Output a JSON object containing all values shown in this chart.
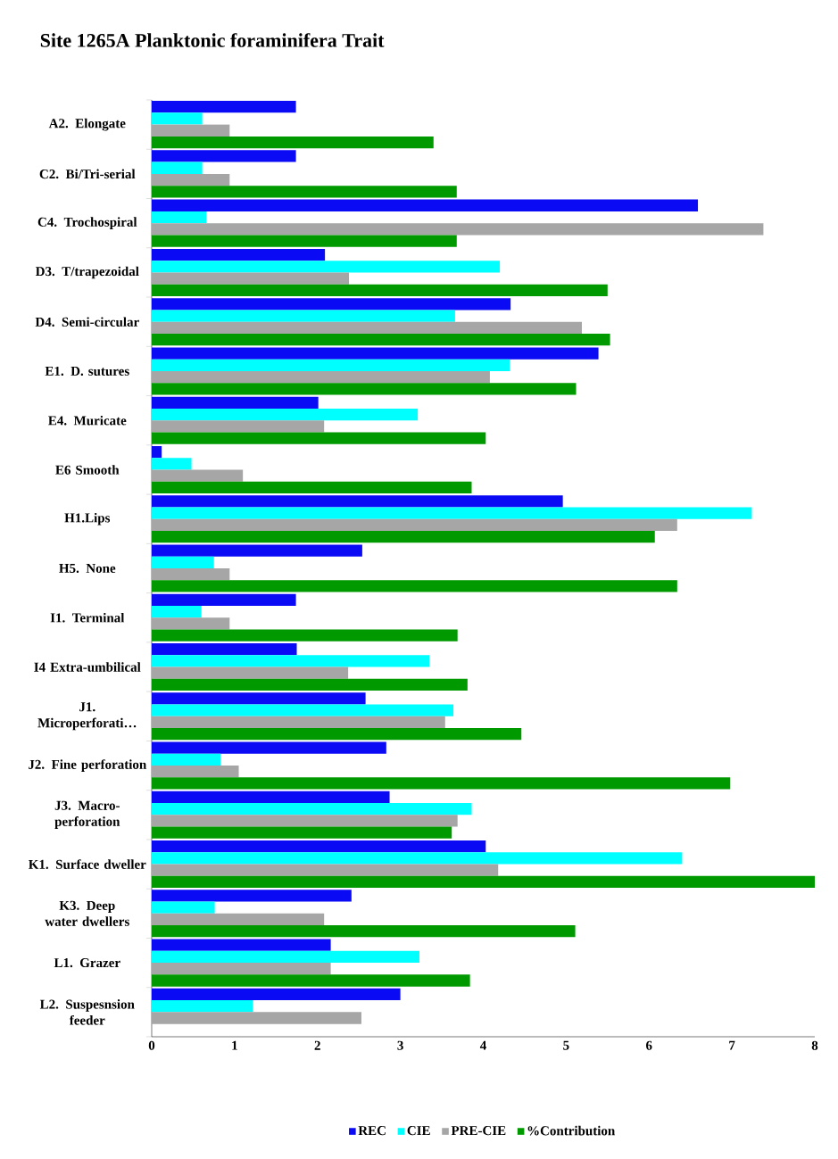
{
  "chart_data": {
    "type": "bar",
    "orientation": "horizontal",
    "title": "Site 1265A Planktonic foraminifera Trait",
    "categories": [
      "A2. Elongate",
      "C2. Bi/Tri-serial",
      "C4. Trochospiral",
      "D3. T/trapezoidal",
      "D4. Semi-circular",
      "E1. D. sutures",
      "E4. Muricate",
      "E6 Smooth",
      "H1.Lips",
      "H5. None",
      "I1. Terminal",
      "I4 Extra-umbilical",
      "J1. Microperforati…",
      "J2. Fine perforation",
      "J3. Macro-perforation",
      "K1. Surface dweller",
      "K3. Deep water dwellers",
      "L1. Grazer",
      "L2. Suspesnsion feeder"
    ],
    "series": [
      {
        "name": "REC",
        "color": "#0a0af5",
        "values": [
          1.74,
          1.74,
          6.59,
          2.09,
          4.33,
          5.39,
          2.01,
          0.12,
          4.96,
          2.54,
          1.74,
          1.75,
          2.58,
          2.83,
          2.87,
          4.03,
          2.41,
          2.16,
          3.0
        ]
      },
      {
        "name": "CIE",
        "color": "#00ffff",
        "values": [
          0.61,
          0.61,
          0.66,
          4.2,
          3.66,
          4.32,
          3.21,
          0.48,
          7.24,
          0.75,
          0.6,
          3.35,
          3.64,
          0.83,
          3.86,
          6.4,
          0.76,
          3.23,
          1.22
        ]
      },
      {
        "name": "PRE-CIE",
        "color": "#a6a6a6",
        "values": [
          0.94,
          0.94,
          7.38,
          2.38,
          5.19,
          4.08,
          2.08,
          1.1,
          6.34,
          0.94,
          0.94,
          2.37,
          3.54,
          1.05,
          3.69,
          4.18,
          2.08,
          2.16,
          2.53
        ]
      },
      {
        "name": "%Contribution",
        "color": "#009900",
        "values": [
          3.4,
          3.68,
          3.68,
          5.5,
          5.53,
          5.12,
          4.03,
          3.86,
          6.07,
          6.34,
          3.69,
          3.81,
          4.46,
          6.98,
          3.62,
          8.0,
          5.11,
          3.84,
          null
        ]
      }
    ],
    "xlim": [
      0,
      8
    ],
    "xticks": [
      0,
      1,
      2,
      3,
      4,
      5,
      6,
      7,
      8
    ],
    "legend": "bottom"
  }
}
